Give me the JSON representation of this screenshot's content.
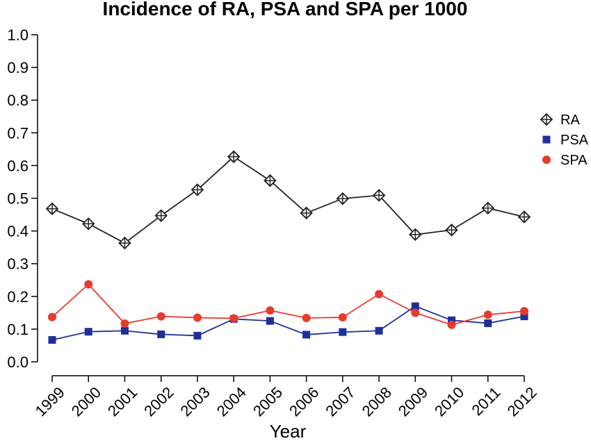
{
  "chart_data": {
    "type": "line",
    "title": "Incidence of RA, PSA and SPA per 1000",
    "xlabel": "Year",
    "ylabel": "",
    "categories": [
      "1999",
      "2000",
      "2001",
      "2002",
      "2003",
      "2004",
      "2005",
      "2006",
      "2007",
      "2008",
      "2009",
      "2010",
      "2011",
      "2012"
    ],
    "ylim": [
      0,
      1.0
    ],
    "yticks": [
      "0.0",
      "0.1",
      "0.2",
      "0.3",
      "0.4",
      "0.5",
      "0.6",
      "0.7",
      "0.8",
      "0.9",
      "1.0"
    ],
    "grid": false,
    "legend_position": "right",
    "series": [
      {
        "name": "RA",
        "color": "#222222",
        "marker": "diamond-plus",
        "values": [
          0.468,
          0.422,
          0.363,
          0.447,
          0.526,
          0.627,
          0.554,
          0.455,
          0.499,
          0.509,
          0.389,
          0.403,
          0.47,
          0.443
        ]
      },
      {
        "name": "PSA",
        "color": "#1f2f9a",
        "marker": "square",
        "values": [
          0.067,
          0.092,
          0.095,
          0.084,
          0.08,
          0.131,
          0.125,
          0.083,
          0.091,
          0.095,
          0.17,
          0.127,
          0.118,
          0.139
        ]
      },
      {
        "name": "SPA",
        "color": "#e63b2e",
        "marker": "circle",
        "values": [
          0.137,
          0.237,
          0.117,
          0.139,
          0.135,
          0.133,
          0.157,
          0.134,
          0.136,
          0.207,
          0.15,
          0.113,
          0.144,
          0.155
        ]
      }
    ]
  }
}
